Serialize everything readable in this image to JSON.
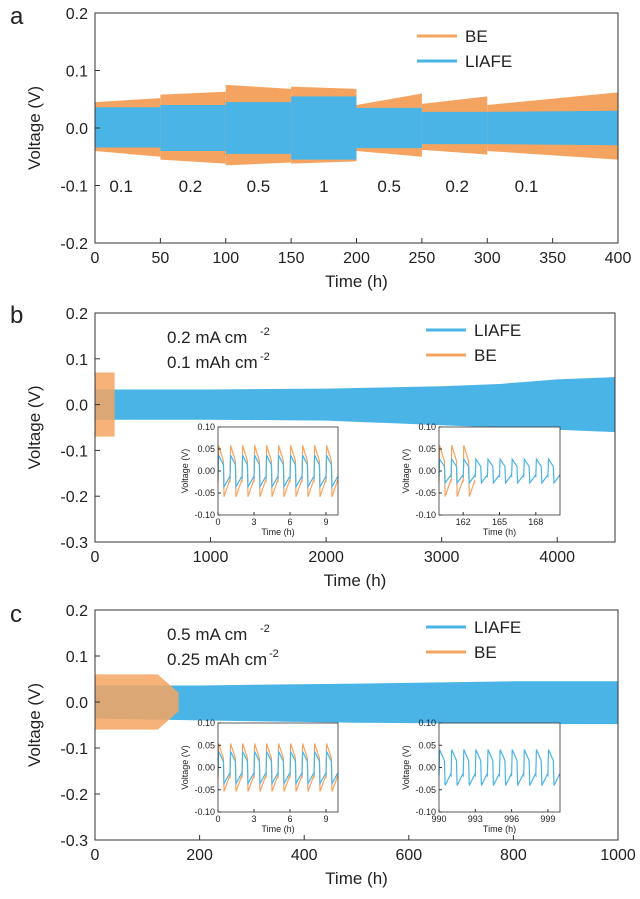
{
  "colors": {
    "BE": "#f4a460",
    "LIAFE": "#4ab4e6",
    "axis": "#333333"
  },
  "chart_data": [
    {
      "panel": "a",
      "type": "line",
      "xlabel": "Time (h)",
      "ylabel": "Voltage (V)",
      "xlim": [
        0,
        400
      ],
      "ylim": [
        -0.2,
        0.2
      ],
      "xticks": [
        "0",
        "50",
        "100",
        "150",
        "200",
        "250",
        "300",
        "350",
        "400"
      ],
      "yticks": [
        "0.2",
        "0.1",
        "0.0",
        "-0.1",
        "-0.2"
      ],
      "legend": [
        "BE",
        "LIAFE"
      ],
      "legend_position": "top-right",
      "rate_labels": [
        {
          "text": "0.1",
          "x": 20
        },
        {
          "text": "0.2",
          "x": 73
        },
        {
          "text": "0.5",
          "x": 125
        },
        {
          "text": "1",
          "x": 175
        },
        {
          "text": "0.5",
          "x": 225
        },
        {
          "text": "0.2",
          "x": 277
        },
        {
          "text": "0.1",
          "x": 330
        }
      ],
      "series": [
        {
          "name": "BE",
          "segments": [
            {
              "x": [
                0,
                50
              ],
              "upper": [
                0.045,
                0.052
              ],
              "lower": [
                -0.04,
                -0.05
              ]
            },
            {
              "x": [
                50,
                100
              ],
              "upper": [
                0.058,
                0.063
              ],
              "lower": [
                -0.055,
                -0.062
              ]
            },
            {
              "x": [
                100,
                150
              ],
              "upper": [
                0.075,
                0.068
              ],
              "lower": [
                -0.065,
                -0.06
              ]
            },
            {
              "x": [
                150,
                200
              ],
              "upper": [
                0.072,
                0.068
              ],
              "lower": [
                -0.062,
                -0.058
              ]
            },
            {
              "x": [
                200,
                250
              ],
              "upper": [
                0.04,
                0.06
              ],
              "lower": [
                -0.04,
                -0.05
              ]
            },
            {
              "x": [
                250,
                300
              ],
              "upper": [
                0.042,
                0.055
              ],
              "lower": [
                -0.038,
                -0.046
              ]
            },
            {
              "x": [
                300,
                400
              ],
              "upper": [
                0.04,
                0.062
              ],
              "lower": [
                -0.04,
                -0.055
              ]
            }
          ]
        },
        {
          "name": "LIAFE",
          "segments": [
            {
              "x": [
                0,
                50
              ],
              "upper": [
                0.036,
                0.036
              ],
              "lower": [
                -0.034,
                -0.034
              ]
            },
            {
              "x": [
                50,
                100
              ],
              "upper": [
                0.04,
                0.04
              ],
              "lower": [
                -0.04,
                -0.04
              ]
            },
            {
              "x": [
                100,
                150
              ],
              "upper": [
                0.045,
                0.045
              ],
              "lower": [
                -0.045,
                -0.045
              ]
            },
            {
              "x": [
                150,
                200
              ],
              "upper": [
                0.055,
                0.055
              ],
              "lower": [
                -0.055,
                -0.055
              ]
            },
            {
              "x": [
                200,
                250
              ],
              "upper": [
                0.035,
                0.035
              ],
              "lower": [
                -0.035,
                -0.035
              ]
            },
            {
              "x": [
                250,
                300
              ],
              "upper": [
                0.028,
                0.028
              ],
              "lower": [
                -0.028,
                -0.028
              ]
            },
            {
              "x": [
                300,
                400
              ],
              "upper": [
                0.028,
                0.03
              ],
              "lower": [
                -0.028,
                -0.03
              ]
            }
          ]
        }
      ]
    },
    {
      "panel": "b",
      "type": "line",
      "xlabel": "Time (h)",
      "ylabel": "Voltage (V)",
      "xlim": [
        0,
        4500
      ],
      "ylim": [
        -0.3,
        0.2
      ],
      "xticks": [
        "0",
        "1000",
        "2000",
        "3000",
        "4000"
      ],
      "yticks": [
        "0.2",
        "0.1",
        "0.0",
        "-0.1",
        "-0.2",
        "-0.3"
      ],
      "condition_line1": "0.2  mA cm",
      "condition_line1_sup": "-2",
      "condition_line2": "0.1 mAh cm",
      "condition_line2_sup": "-2",
      "legend": [
        "LIAFE",
        "BE"
      ],
      "legend_position": "top-right",
      "series": [
        {
          "name": "LIAFE",
          "x": [
            0,
            1000,
            2000,
            3000,
            3500,
            4000,
            4500
          ],
          "upper": [
            0.033,
            0.033,
            0.035,
            0.04,
            0.045,
            0.055,
            0.06
          ],
          "lower": [
            -0.033,
            -0.033,
            -0.035,
            -0.045,
            -0.05,
            -0.055,
            -0.06
          ]
        },
        {
          "name": "BE",
          "x": [
            0,
            170
          ],
          "upper": [
            0.07,
            0.07
          ],
          "lower": [
            -0.07,
            -0.07
          ]
        }
      ],
      "insets": [
        {
          "xlabel": "Time (h)",
          "ylabel": "Voltage (V)",
          "xlim": [
            0,
            10
          ],
          "ylim": [
            -0.1,
            0.1
          ],
          "xticks": [
            "0",
            "3",
            "6",
            "9"
          ],
          "yticks": [
            "0.10",
            "0.05",
            "0.00",
            "-0.05",
            "-0.10"
          ],
          "series": [
            {
              "name": "BE",
              "start": 0,
              "end": 10,
              "period": 1,
              "amp": 0.065
            },
            {
              "name": "LIAFE",
              "start": 0,
              "end": 10,
              "period": 1,
              "amp": 0.04
            }
          ]
        },
        {
          "xlabel": "Time (h)",
          "ylabel": "Voltage (V)",
          "xlim": [
            160,
            170
          ],
          "ylim": [
            -0.1,
            0.1
          ],
          "xticks": [
            "162",
            "165",
            "168"
          ],
          "yticks": [
            "0.10",
            "0.05",
            "0.00",
            "-0.05",
            "-0.10"
          ],
          "series": [
            {
              "name": "BE",
              "start": 160,
              "end": 163,
              "period": 1,
              "amp": 0.065
            },
            {
              "name": "LIAFE",
              "start": 160,
              "end": 170,
              "period": 1,
              "amp": 0.03
            }
          ]
        }
      ]
    },
    {
      "panel": "c",
      "type": "line",
      "xlabel": "Time (h)",
      "ylabel": "Voltage (V)",
      "xlim": [
        0,
        1000
      ],
      "ylim": [
        -0.3,
        0.2
      ],
      "xticks": [
        "0",
        "200",
        "400",
        "600",
        "800",
        "1000"
      ],
      "yticks": [
        "0.2",
        "0.1",
        "0.0",
        "-0.1",
        "-0.2",
        "-0.3"
      ],
      "condition_line1": "0.5  mA cm",
      "condition_line1_sup": "-2",
      "condition_line2": "0.25 mAh cm",
      "condition_line2_sup": "-2",
      "legend": [
        "LIAFE",
        "BE"
      ],
      "legend_position": "top-right",
      "series": [
        {
          "name": "LIAFE",
          "x": [
            0,
            200,
            500,
            800,
            1000
          ],
          "upper": [
            0.036,
            0.036,
            0.04,
            0.045,
            0.045
          ],
          "lower": [
            -0.036,
            -0.04,
            -0.045,
            -0.048,
            -0.048
          ]
        },
        {
          "name": "BE",
          "x": [
            0,
            120,
            160
          ],
          "upper": [
            0.06,
            0.06,
            0.02
          ],
          "lower": [
            -0.06,
            -0.06,
            -0.02
          ]
        }
      ],
      "insets": [
        {
          "xlabel": "Time (h)",
          "ylabel": "Voltage (V)",
          "xlim": [
            0,
            10
          ],
          "ylim": [
            -0.1,
            0.1
          ],
          "xticks": [
            "0",
            "3",
            "6",
            "9"
          ],
          "yticks": [
            "0.10",
            "0.05",
            "0.00",
            "-0.05",
            "-0.10"
          ],
          "series": [
            {
              "name": "BE",
              "start": 0,
              "end": 10,
              "period": 1,
              "amp": 0.06
            },
            {
              "name": "LIAFE",
              "start": 0,
              "end": 10,
              "period": 1,
              "amp": 0.04
            }
          ]
        },
        {
          "xlabel": "Time (h)",
          "ylabel": "Voltage (V)",
          "xlim": [
            990,
            1000
          ],
          "ylim": [
            -0.1,
            0.1
          ],
          "xticks": [
            "990",
            "993",
            "996",
            "999"
          ],
          "yticks": [
            "0.10",
            "0.05",
            "0.00",
            "-0.05",
            "-0.10"
          ],
          "series": [
            {
              "name": "LIAFE",
              "start": 990,
              "end": 1000,
              "period": 1,
              "amp": 0.045
            }
          ]
        }
      ]
    }
  ]
}
